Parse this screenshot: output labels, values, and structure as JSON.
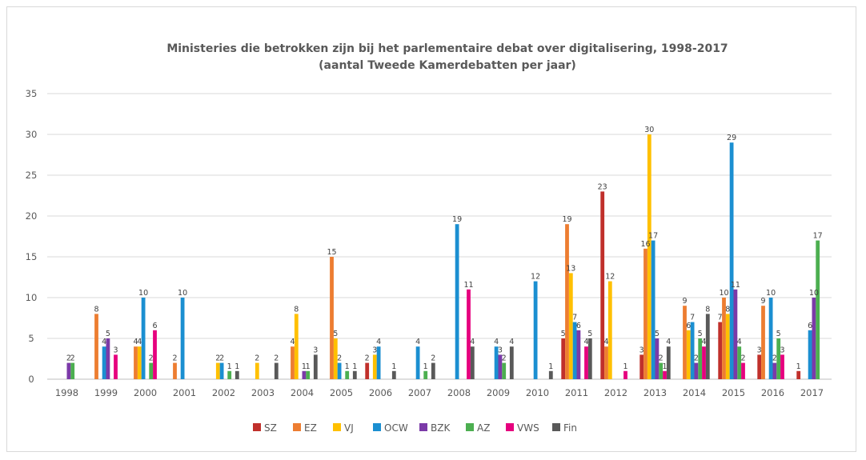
{
  "chart_data": {
    "type": "bar",
    "title_line1": "Ministeries die betrokken zijn bij het parlementaire debat over digitalisering, 1998-2017",
    "title_line2": "(aantal Tweede Kamerdebatten per jaar)",
    "xlabel": "",
    "ylabel": "",
    "ylim": [
      0,
      35
    ],
    "yticks": [
      0,
      5,
      10,
      15,
      20,
      25,
      30,
      35
    ],
    "grid": true,
    "legend_position": "bottom",
    "categories": [
      "1998",
      "1999",
      "2000",
      "2001",
      "2002",
      "2003",
      "2004",
      "2005",
      "2006",
      "2007",
      "2008",
      "2009",
      "2010",
      "2011",
      "2012",
      "2013",
      "2014",
      "2015",
      "2016",
      "2017"
    ],
    "series": [
      {
        "name": "SZ",
        "color": "#c0302b",
        "values": [
          0,
          0,
          0,
          0,
          0,
          0,
          0,
          0,
          2,
          0,
          0,
          0,
          0,
          5,
          23,
          3,
          0,
          7,
          3,
          1
        ]
      },
      {
        "name": "EZ",
        "color": "#ed7d31",
        "values": [
          0,
          8,
          4,
          2,
          0,
          0,
          4,
          15,
          0,
          0,
          0,
          0,
          0,
          19,
          4,
          16,
          9,
          10,
          9,
          0
        ]
      },
      {
        "name": "VJ",
        "color": "#ffc000",
        "values": [
          0,
          0,
          4,
          0,
          2,
          2,
          8,
          5,
          3,
          0,
          0,
          0,
          0,
          13,
          12,
          30,
          6,
          8,
          0,
          0
        ]
      },
      {
        "name": "OCW",
        "color": "#1b8fd1",
        "values": [
          0,
          4,
          10,
          10,
          2,
          0,
          0,
          2,
          4,
          4,
          19,
          4,
          12,
          7,
          0,
          17,
          7,
          29,
          10,
          6
        ]
      },
      {
        "name": "BZK",
        "color": "#7b3aa8",
        "values": [
          2,
          5,
          0,
          0,
          0,
          0,
          1,
          0,
          0,
          0,
          0,
          3,
          0,
          6,
          0,
          5,
          2,
          11,
          2,
          10
        ]
      },
      {
        "name": "AZ",
        "color": "#4caf50",
        "values": [
          2,
          0,
          2,
          0,
          1,
          0,
          1,
          1,
          0,
          1,
          0,
          2,
          0,
          0,
          0,
          2,
          5,
          4,
          5,
          17
        ]
      },
      {
        "name": "VWS",
        "color": "#e6007e",
        "values": [
          0,
          3,
          6,
          0,
          0,
          0,
          0,
          0,
          0,
          0,
          11,
          0,
          0,
          4,
          1,
          1,
          4,
          2,
          3,
          0
        ]
      },
      {
        "name": "Fin",
        "color": "#595959",
        "values": [
          0,
          0,
          0,
          0,
          1,
          2,
          3,
          1,
          1,
          2,
          4,
          4,
          1,
          5,
          0,
          4,
          8,
          0,
          0,
          0
        ]
      }
    ]
  }
}
